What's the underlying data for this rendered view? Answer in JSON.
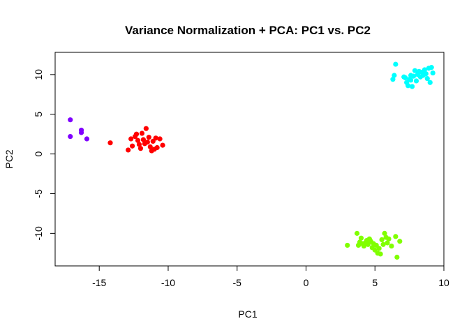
{
  "chart_data": {
    "type": "scatter",
    "title": "Variance Normalization + PCA: PC1 vs. PC2",
    "xlabel": "PC1",
    "ylabel": "PC2",
    "xlim": [
      -18.2,
      10.0
    ],
    "ylim": [
      -14.1,
      12.8
    ],
    "xticks": [
      -15,
      -10,
      -5,
      0,
      5,
      10
    ],
    "yticks": [
      -10,
      -5,
      0,
      5,
      10
    ],
    "grid": false,
    "legend": "none",
    "series": [
      {
        "color": "#8000FF",
        "points": [
          [
            -17.1,
            4.3
          ],
          [
            -17.1,
            2.2
          ],
          [
            -16.3,
            3.0
          ],
          [
            -16.3,
            2.7
          ],
          [
            -15.9,
            1.9
          ]
        ]
      },
      {
        "color": "#FF0000",
        "points": [
          [
            -14.2,
            1.4
          ],
          [
            -12.9,
            0.5
          ],
          [
            -12.7,
            1.9
          ],
          [
            -12.6,
            1.0
          ],
          [
            -12.4,
            2.2
          ],
          [
            -12.3,
            2.5
          ],
          [
            -12.2,
            1.7
          ],
          [
            -12.1,
            1.2
          ],
          [
            -12.0,
            0.7
          ],
          [
            -11.9,
            2.6
          ],
          [
            -11.8,
            1.8
          ],
          [
            -11.7,
            1.3
          ],
          [
            -11.6,
            3.2
          ],
          [
            -11.5,
            1.5
          ],
          [
            -11.4,
            2.1
          ],
          [
            -11.3,
            0.9
          ],
          [
            -11.2,
            0.4
          ],
          [
            -11.1,
            1.6
          ],
          [
            -11.0,
            0.6
          ],
          [
            -10.9,
            2.0
          ],
          [
            -10.8,
            0.8
          ],
          [
            -10.6,
            1.9
          ],
          [
            -10.4,
            1.1
          ]
        ]
      },
      {
        "color": "#00FFFF",
        "points": [
          [
            6.3,
            9.4
          ],
          [
            6.4,
            9.9
          ],
          [
            6.5,
            11.3
          ],
          [
            7.2,
            9.6
          ],
          [
            7.3,
            9.0
          ],
          [
            7.4,
            8.6
          ],
          [
            7.5,
            9.4
          ],
          [
            7.6,
            9.9
          ],
          [
            7.7,
            8.5
          ],
          [
            7.8,
            9.8
          ],
          [
            7.9,
            10.5
          ],
          [
            8.0,
            9.2
          ],
          [
            8.1,
            10.0
          ],
          [
            8.3,
            9.7
          ],
          [
            8.4,
            10.3
          ],
          [
            8.5,
            9.9
          ],
          [
            8.6,
            10.6
          ],
          [
            8.7,
            10.1
          ],
          [
            8.8,
            9.5
          ],
          [
            8.9,
            10.8
          ],
          [
            9.0,
            9.0
          ],
          [
            9.1,
            10.9
          ],
          [
            9.2,
            10.2
          ],
          [
            8.2,
            10.4
          ],
          [
            7.6,
            9.3
          ],
          [
            7.1,
            9.7
          ]
        ]
      },
      {
        "color": "#80FF00",
        "points": [
          [
            3.0,
            -11.5
          ],
          [
            3.7,
            -10.0
          ],
          [
            3.8,
            -11.5
          ],
          [
            3.9,
            -11.1
          ],
          [
            4.0,
            -10.6
          ],
          [
            4.1,
            -11.3
          ],
          [
            4.2,
            -11.6
          ],
          [
            4.3,
            -11.2
          ],
          [
            4.4,
            -10.9
          ],
          [
            4.5,
            -11.4
          ],
          [
            4.6,
            -10.7
          ],
          [
            4.7,
            -11.0
          ],
          [
            4.8,
            -11.8
          ],
          [
            4.9,
            -11.3
          ],
          [
            5.0,
            -12.1
          ],
          [
            5.1,
            -11.5
          ],
          [
            5.2,
            -12.5
          ],
          [
            5.3,
            -11.9
          ],
          [
            5.4,
            -12.6
          ],
          [
            5.5,
            -10.8
          ],
          [
            5.6,
            -11.4
          ],
          [
            5.7,
            -10.0
          ],
          [
            5.8,
            -10.5
          ],
          [
            5.9,
            -11.2
          ],
          [
            6.0,
            -10.7
          ],
          [
            6.2,
            -11.6
          ],
          [
            6.5,
            -10.4
          ],
          [
            6.6,
            -13.0
          ],
          [
            6.8,
            -11.0
          ],
          [
            4.6,
            -11.1
          ]
        ]
      }
    ]
  }
}
